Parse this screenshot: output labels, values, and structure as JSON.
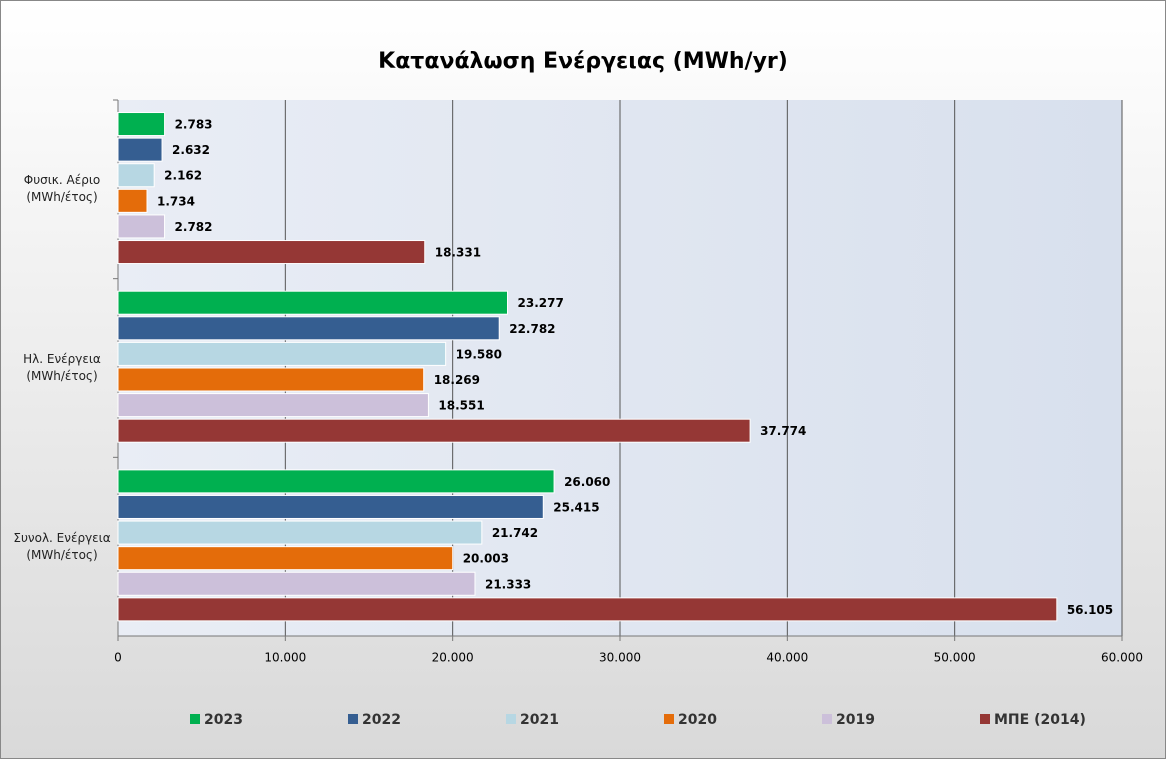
{
  "chart_data": {
    "type": "hbar",
    "title": "Κατανάλωση Ενέργειας (MWh/yr)",
    "categories": [
      "Φυσικ. Αέριο (MWh/έτος)",
      "Ηλ. Ενέργεια (MWh/έτος)",
      "Συνολ. Ενέργεια (MWh/έτος)"
    ],
    "series": [
      {
        "name": "2023",
        "color": "#00b050",
        "values": [
          2783,
          23277,
          26060
        ],
        "value_labels": [
          "2.783",
          "23.277",
          "26.060"
        ]
      },
      {
        "name": "2022",
        "color": "#355e91",
        "values": [
          2632,
          22782,
          25415
        ],
        "value_labels": [
          "2.632",
          "22.782",
          "25.415"
        ]
      },
      {
        "name": "2021",
        "color": "#b7d7e3",
        "values": [
          2162,
          19580,
          21742
        ],
        "value_labels": [
          "2.162",
          "19.580",
          "21.742"
        ]
      },
      {
        "name": "2020",
        "color": "#e46c0a",
        "values": [
          1734,
          18269,
          20003
        ],
        "value_labels": [
          "1.734",
          "18.269",
          "20.003"
        ]
      },
      {
        "name": "2019",
        "color": "#ccc0da",
        "values": [
          2782,
          18551,
          21333
        ],
        "value_labels": [
          "2.782",
          "18.551",
          "21.333"
        ]
      },
      {
        "name": "ΜΠΕ (2014)",
        "color": "#953735",
        "values": [
          18331,
          37774,
          56105
        ],
        "value_labels": [
          "18.331",
          "37.774",
          "56.105"
        ]
      }
    ],
    "xlim": [
      0,
      60000
    ],
    "xticks": [
      0,
      {
        "value": 10000,
        "label": "10.000"
      },
      {
        "value": 20000,
        "label": "20.000"
      },
      {
        "value": 30000,
        "label": "30.000"
      },
      {
        "value": 40000,
        "label": "40.000"
      },
      {
        "value": 50000,
        "label": "50.000"
      },
      {
        "value": 60000,
        "label": "60.000"
      }
    ],
    "grid": true,
    "legend": "bottom"
  }
}
